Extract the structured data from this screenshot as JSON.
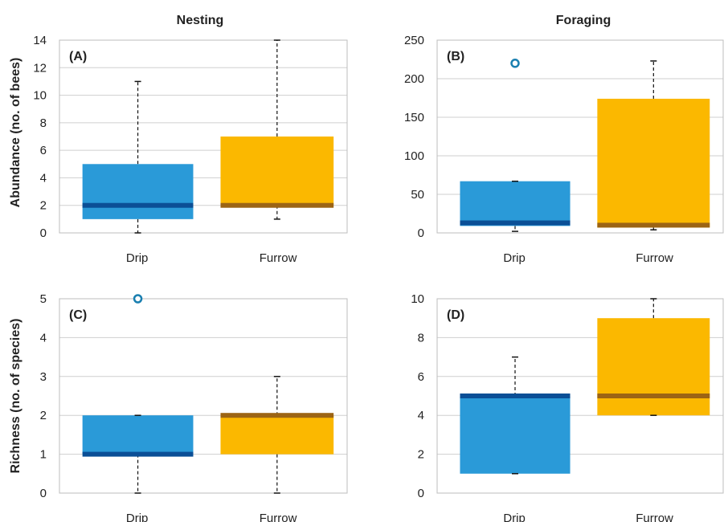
{
  "figure": {
    "col_titles": [
      "Nesting",
      "Foraging"
    ],
    "row_labels": [
      "Abundance (no. of bees)",
      "Richness (no. of species)"
    ]
  },
  "colors": {
    "drip_box": "#2a9ad8",
    "drip_median": "#0b4f96",
    "furrow_box": "#fbb800",
    "furrow_median": "#9c6414",
    "outlier": "#1a7fb0"
  },
  "chart_data": [
    {
      "type": "box",
      "panel_label": "(A)",
      "column_title": "Nesting",
      "ylabel": "Abundance (no. of bees)",
      "categories": [
        "Drip",
        "Furrow"
      ],
      "ylim": [
        0,
        14
      ],
      "yticks": [
        0,
        2,
        4,
        6,
        8,
        10,
        12,
        14
      ],
      "grid": true,
      "boxes": [
        {
          "category": "Drip",
          "min": 0,
          "q1": 1,
          "median": 2,
          "q3": 5,
          "max": 11,
          "outliers": []
        },
        {
          "category": "Furrow",
          "min": 1,
          "q1": 2,
          "median": 2,
          "q3": 7,
          "max": 14,
          "outliers": []
        }
      ]
    },
    {
      "type": "box",
      "panel_label": "(B)",
      "column_title": "Foraging",
      "ylabel": "",
      "categories": [
        "Drip",
        "Furrow"
      ],
      "ylim": [
        0,
        250
      ],
      "yticks": [
        0,
        50,
        100,
        150,
        200,
        250
      ],
      "grid": true,
      "boxes": [
        {
          "category": "Drip",
          "min": 2,
          "q1": 9,
          "median": 13,
          "q3": 67,
          "max": 67,
          "outliers": [
            220
          ]
        },
        {
          "category": "Furrow",
          "min": 4,
          "q1": 7,
          "median": 10,
          "q3": 174,
          "max": 223,
          "outliers": []
        }
      ]
    },
    {
      "type": "box",
      "panel_label": "(C)",
      "column_title": "Nesting",
      "ylabel": "Richness (no. of species)",
      "categories": [
        "Drip",
        "Furrow"
      ],
      "ylim": [
        0,
        5
      ],
      "yticks": [
        0,
        1,
        2,
        3,
        4,
        5
      ],
      "grid": true,
      "boxes": [
        {
          "category": "Drip",
          "min": 0,
          "q1": 1,
          "median": 1,
          "q3": 2,
          "max": 2,
          "outliers": [
            5
          ]
        },
        {
          "category": "Furrow",
          "min": 0,
          "q1": 1,
          "median": 2,
          "q3": 2,
          "max": 3,
          "outliers": []
        }
      ]
    },
    {
      "type": "box",
      "panel_label": "(D)",
      "column_title": "Foraging",
      "ylabel": "",
      "categories": [
        "Drip",
        "Furrow"
      ],
      "ylim": [
        0,
        10
      ],
      "yticks": [
        0,
        2,
        4,
        6,
        8,
        10
      ],
      "grid": true,
      "boxes": [
        {
          "category": "Drip",
          "min": 1,
          "q1": 1,
          "median": 5,
          "q3": 5,
          "max": 7,
          "outliers": []
        },
        {
          "category": "Furrow",
          "min": 4,
          "q1": 4,
          "median": 5,
          "q3": 9,
          "max": 10,
          "outliers": []
        }
      ]
    }
  ]
}
